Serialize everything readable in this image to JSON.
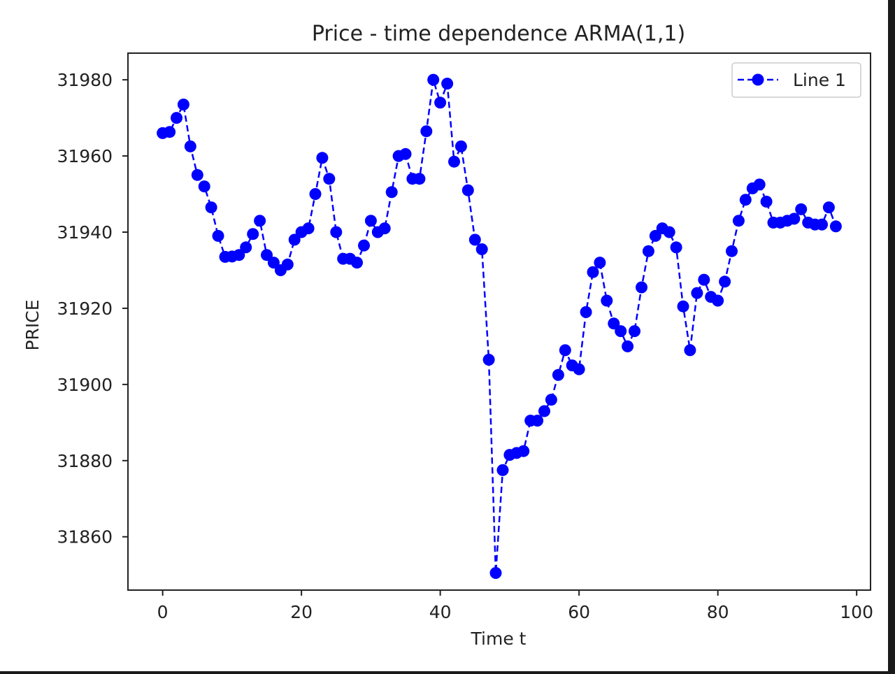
{
  "chart_data": {
    "type": "line",
    "title": "Price - time dependence ARMA(1,1)",
    "xlabel": "Time t",
    "ylabel": "PRICE",
    "xlim": [
      -5,
      102
    ],
    "ylim": [
      31846,
      31987
    ],
    "xticks": [
      0,
      20,
      40,
      60,
      80,
      100
    ],
    "yticks": [
      31860,
      31880,
      31900,
      31920,
      31940,
      31960,
      31980
    ],
    "grid": false,
    "legend_position": "top-right",
    "series": [
      {
        "name": "Line 1",
        "color": "#0000ff",
        "line_style": "dashed",
        "marker": "circle",
        "x": [
          0,
          1,
          2,
          3,
          4,
          5,
          6,
          7,
          8,
          9,
          10,
          11,
          12,
          13,
          14,
          15,
          16,
          17,
          18,
          19,
          20,
          21,
          22,
          23,
          24,
          25,
          26,
          27,
          28,
          29,
          30,
          31,
          32,
          33,
          34,
          35,
          36,
          37,
          38,
          39,
          40,
          41,
          42,
          43,
          44,
          45,
          46,
          47,
          48,
          49,
          50,
          51,
          52,
          53,
          54,
          55,
          56,
          57,
          58,
          59,
          60,
          61,
          62,
          63,
          64,
          65,
          66,
          67,
          68,
          69,
          70,
          71,
          72,
          73,
          74,
          75,
          76,
          77,
          78,
          79,
          80,
          81,
          82,
          83,
          84,
          85,
          86,
          87,
          88,
          89,
          90,
          91,
          92,
          93,
          94,
          95,
          96,
          97
        ],
        "y": [
          31966,
          31966.3,
          31970,
          31973.5,
          31962.5,
          31955,
          31952,
          31946.5,
          31939,
          31933.5,
          31933.6,
          31934,
          31936,
          31939.5,
          31943,
          31934,
          31932,
          31930,
          31931.5,
          31938,
          31940,
          31941,
          31950,
          31959.5,
          31954,
          31940,
          31933,
          31933,
          31932,
          31936.5,
          31943,
          31940,
          31941,
          31950.5,
          31960,
          31960.5,
          31954,
          31954,
          31966.5,
          31980,
          31974,
          31979,
          31958.5,
          31962.5,
          31951,
          31938,
          31935.5,
          31906.5,
          31850.5,
          31877.5,
          31881.5,
          31882,
          31882.5,
          31890.5,
          31890.5,
          31893,
          31896,
          31902.5,
          31909,
          31905,
          31904,
          31919,
          31929.5,
          31932,
          31922,
          31916,
          31914,
          31910,
          31914,
          31925.5,
          31935,
          31939,
          31941,
          31940,
          31936,
          31920.5,
          31909,
          31924,
          31927.5,
          31923,
          31922,
          31927,
          31935,
          31943,
          31948.5,
          31951.5,
          31952.5,
          31948,
          31942.5,
          31942.5,
          31943,
          31943.5,
          31946,
          31942.5,
          31942,
          31942,
          31946.5,
          31941.5
        ]
      }
    ]
  }
}
